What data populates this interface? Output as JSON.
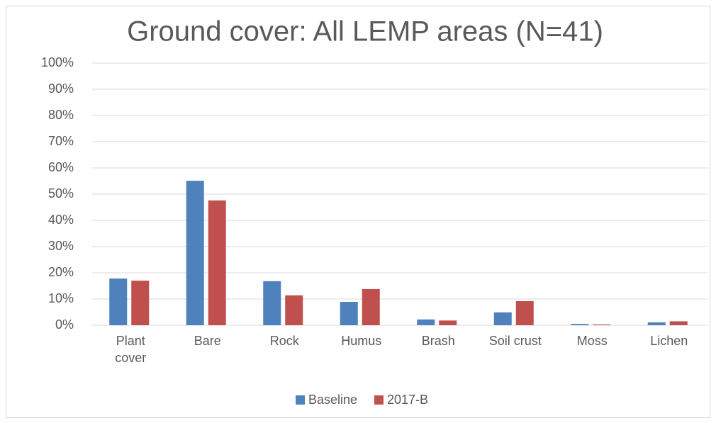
{
  "chart_data": {
    "type": "bar",
    "title": "Ground cover: All LEMP areas (N=41)",
    "categories": [
      "Plant cover",
      "Bare",
      "Rock",
      "Humus",
      "Brash",
      "Soil crust",
      "Moss",
      "Lichen"
    ],
    "series": [
      {
        "name": "Baseline",
        "color": "#4f81bd",
        "values": [
          17.8,
          55.1,
          16.8,
          8.9,
          2.2,
          4.9,
          0.5,
          1.1
        ]
      },
      {
        "name": "2017-B",
        "color": "#c0504d",
        "values": [
          17.0,
          47.6,
          11.4,
          13.8,
          1.8,
          9.2,
          0.3,
          1.5
        ]
      }
    ],
    "ylim": [
      0,
      100
    ],
    "yticks": [
      {
        "value": 0,
        "label": "0%"
      },
      {
        "value": 10,
        "label": "10%"
      },
      {
        "value": 20,
        "label": "20%"
      },
      {
        "value": 30,
        "label": "30%"
      },
      {
        "value": 40,
        "label": "40%"
      },
      {
        "value": 50,
        "label": "50%"
      },
      {
        "value": 60,
        "label": "60%"
      },
      {
        "value": 70,
        "label": "70%"
      },
      {
        "value": 80,
        "label": "80%"
      },
      {
        "value": 90,
        "label": "90%"
      },
      {
        "value": 100,
        "label": "100%"
      }
    ],
    "grid": true,
    "legend": "bottom"
  }
}
